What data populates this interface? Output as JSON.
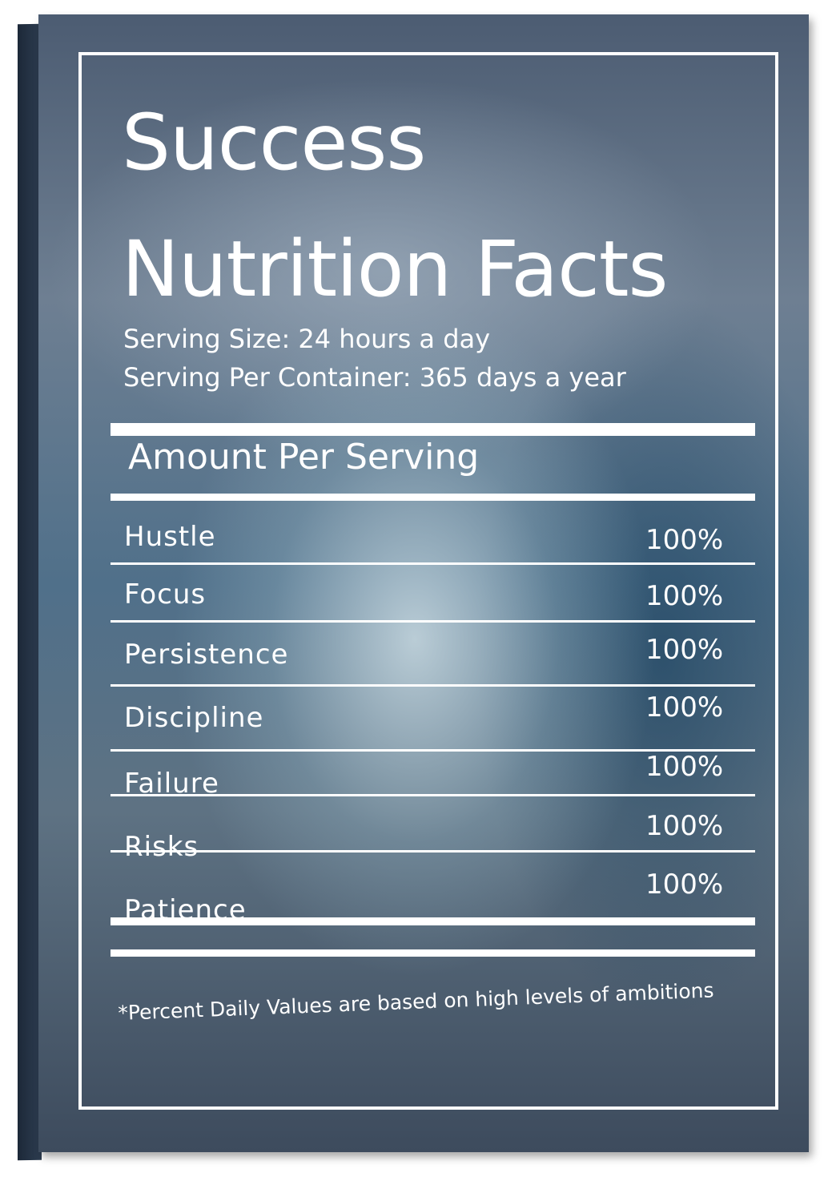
{
  "title_line1": "Success",
  "title_line2": "Nutrition Facts",
  "serving_size": "Serving Size: 24 hours a day",
  "serving_per_container": "Serving Per Container: 365 days a year",
  "amount_header": "Amount Per Serving",
  "items": [
    {
      "label": "Hustle",
      "value": "100%"
    },
    {
      "label": "Focus",
      "value": "100%"
    },
    {
      "label": "Persistence",
      "value": "100%"
    },
    {
      "label": "Discipline",
      "value": "100%"
    },
    {
      "label": "Failure",
      "value": "100%"
    },
    {
      "label": "Risks",
      "value": "100%"
    },
    {
      "label": "Patience",
      "value": "100%"
    }
  ],
  "footnote": "*Percent Daily Values are based on high levels of ambitions"
}
